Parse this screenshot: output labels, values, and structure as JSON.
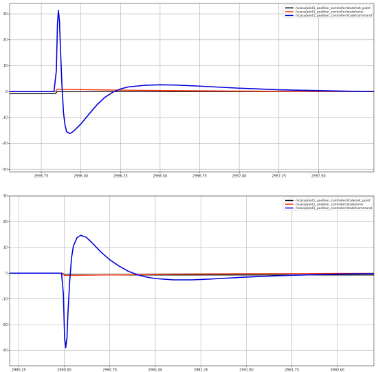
{
  "chart_data": [
    {
      "type": "line",
      "title": "",
      "xlabel": "",
      "ylabel": "",
      "xlim": [
        2995.55,
        2997.85
      ],
      "ylim": [
        -31,
        34
      ],
      "xticks": [
        "2995.75",
        "2996.00",
        "2996.25",
        "2996.50",
        "2996.75",
        "2997.00",
        "2997.25",
        "2997.50"
      ],
      "yticks": [
        "30",
        "20",
        "10",
        "0",
        "-10",
        "-20",
        "-30"
      ],
      "grid": true,
      "legend_position": "top-right",
      "series": [
        {
          "name": "/scara/joint1_position_controller/state/set_point",
          "color": "#000000",
          "x": [
            2995.55,
            2995.84,
            2995.85,
            2997.85
          ],
          "y": [
            -0.7,
            -0.7,
            0,
            0
          ]
        },
        {
          "name": "/scara/joint1_position_controller/state/error",
          "color": "#ff2a00",
          "x": [
            2995.55,
            2995.84,
            2995.85,
            2995.9,
            2996.0,
            2996.25,
            2996.5,
            2996.75,
            2997.0,
            2997.25,
            2997.5,
            2997.85
          ],
          "y": [
            0,
            0,
            0.9,
            0.85,
            0.75,
            0.55,
            0.4,
            0.3,
            0.2,
            0.12,
            0.06,
            0.02
          ]
        },
        {
          "name": "/scara/joint1_position_controller/state/command",
          "color": "#0000dd",
          "x": [
            2995.55,
            2995.83,
            2995.845,
            2995.852,
            2995.858,
            2995.865,
            2995.87,
            2995.88,
            2995.89,
            2995.9,
            2995.91,
            2995.93,
            2995.95,
            2996.0,
            2996.05,
            2996.1,
            2996.15,
            2996.2,
            2996.25,
            2996.3,
            2996.4,
            2996.5,
            2996.6,
            2996.75,
            2997.0,
            2997.25,
            2997.5,
            2997.7,
            2997.85
          ],
          "y": [
            0,
            0,
            8,
            26,
            31.3,
            27,
            18,
            3,
            -8,
            -13,
            -15.5,
            -16.2,
            -15.5,
            -12.5,
            -8.8,
            -5.2,
            -2.3,
            -0.3,
            1,
            1.8,
            2.4,
            2.6,
            2.5,
            2.1,
            1.3,
            0.7,
            0.35,
            0.12,
            0.05
          ]
        }
      ]
    },
    {
      "type": "line",
      "title": "",
      "xlabel": "",
      "ylabel": "",
      "xlim": [
        2990.2,
        2992.2
      ],
      "ylim": [
        -36,
        30
      ],
      "xticks": [
        "2990.25",
        "2990.50",
        "2990.75",
        "2991.00",
        "2991.25",
        "2991.50",
        "2991.75",
        "2992.00"
      ],
      "yticks": [
        "30",
        "20",
        "10",
        "0",
        "-10",
        "-20",
        "-30"
      ],
      "grid": true,
      "legend_position": "top-right",
      "series": [
        {
          "name": "/scara/joint1_position_controller/state/set_point",
          "color": "#000000",
          "x": [
            2990.2,
            2990.49,
            2990.5,
            2992.2
          ],
          "y": [
            0,
            0,
            -0.7,
            -0.7
          ]
        },
        {
          "name": "/scara/joint1_position_controller/state/error",
          "color": "#ff2a00",
          "x": [
            2990.2,
            2990.49,
            2990.5,
            2990.55,
            2990.75,
            2991.0,
            2991.25,
            2991.5,
            2991.75,
            2992.0,
            2992.2
          ],
          "y": [
            0,
            0,
            -0.9,
            -0.85,
            -0.7,
            -0.5,
            -0.35,
            -0.25,
            -0.15,
            -0.08,
            -0.05
          ]
        },
        {
          "name": "/scara/joint1_position_controller/state/command",
          "color": "#0000dd",
          "x": [
            2990.2,
            2990.485,
            2990.495,
            2990.502,
            2990.508,
            2990.515,
            2990.52,
            2990.53,
            2990.54,
            2990.55,
            2990.57,
            2990.59,
            2990.62,
            2990.65,
            2990.7,
            2990.75,
            2990.8,
            2990.85,
            2990.9,
            2990.95,
            2991.0,
            2991.1,
            2991.2,
            2991.3,
            2991.5,
            2991.75,
            2992.0,
            2992.2
          ],
          "y": [
            0,
            0,
            -8,
            -25,
            -29,
            -25,
            -16,
            -3,
            6,
            10.5,
            13.8,
            14.7,
            14,
            12,
            8.3,
            5.2,
            2.8,
            0.8,
            -0.6,
            -1.5,
            -2.1,
            -2.6,
            -2.6,
            -2.3,
            -1.5,
            -0.8,
            -0.35,
            -0.15
          ]
        }
      ]
    }
  ]
}
